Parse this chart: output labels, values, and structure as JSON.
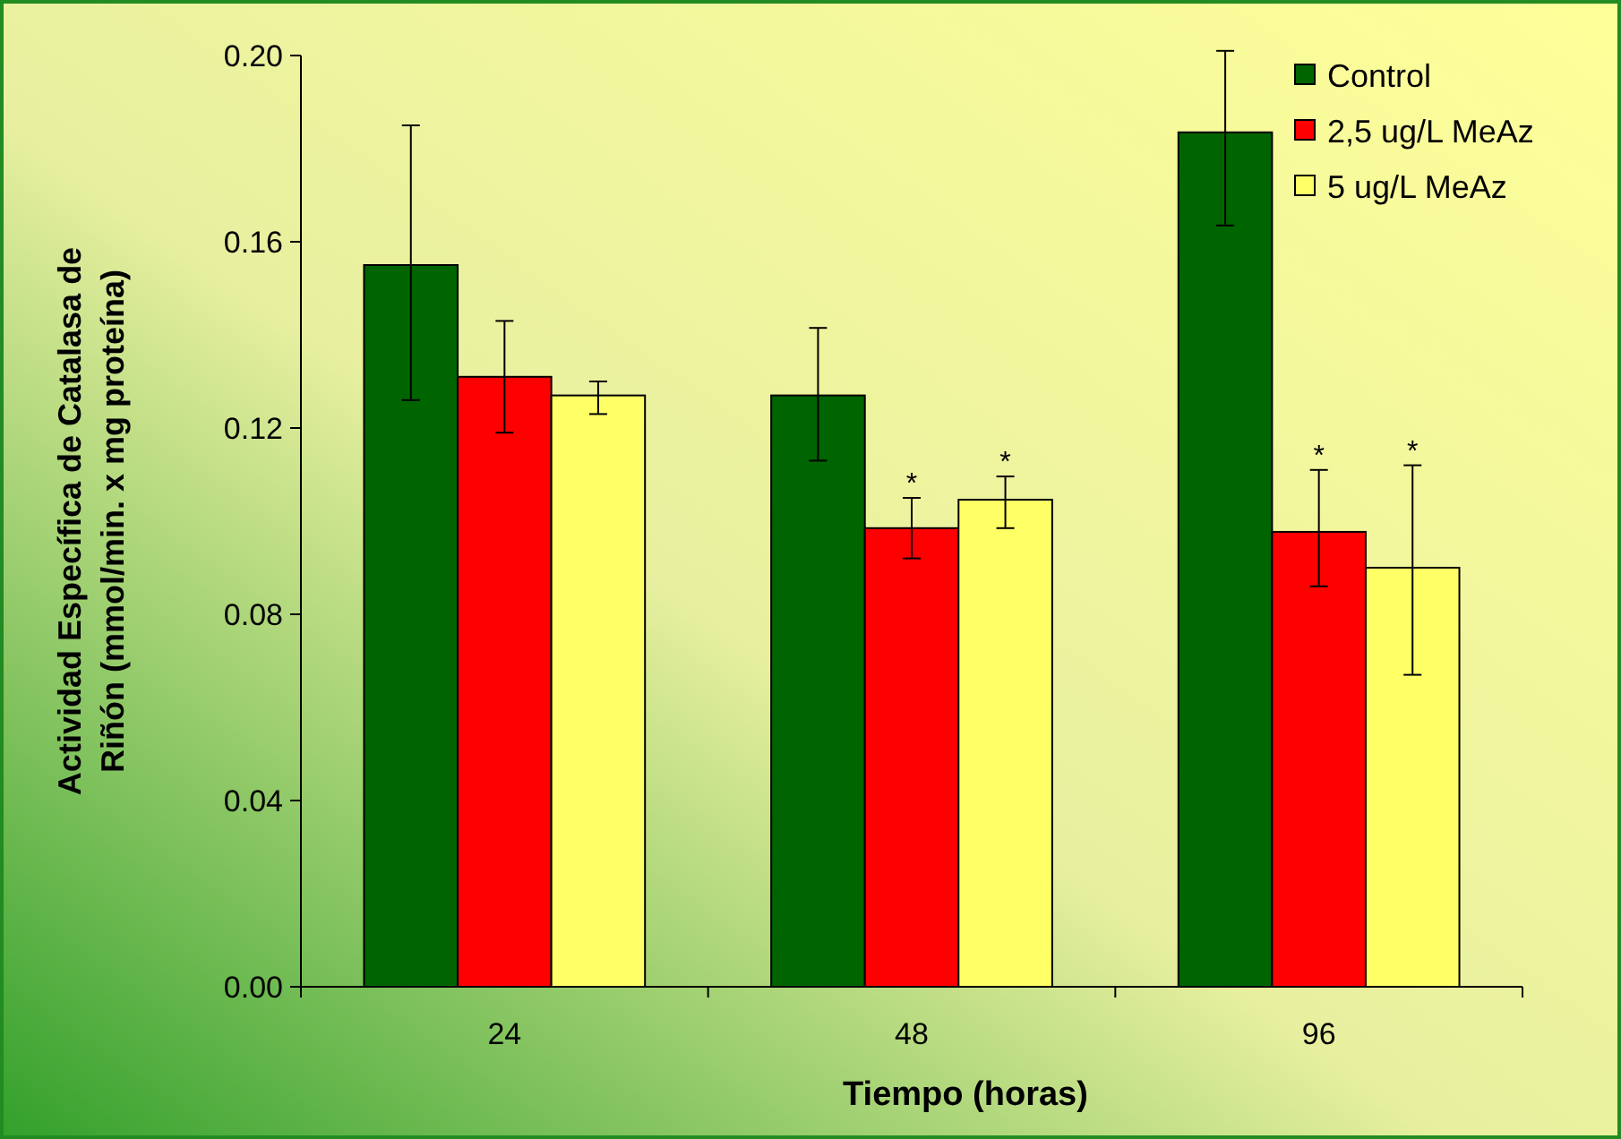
{
  "chart_data": {
    "type": "bar",
    "xlabel": "Tiempo (horas)",
    "ylabel": "Actividad Específica de Catalasa de\nRiñón (mmol/min. x mg proteína)",
    "categories": [
      "24",
      "48",
      "96"
    ],
    "series": [
      {
        "name": "Control",
        "color": "#006400",
        "values": [
          0.155,
          0.127,
          0.1835
        ],
        "errors": [
          [
            0.126,
            0.185
          ],
          [
            0.113,
            0.1415
          ],
          [
            0.1635,
            0.201
          ]
        ]
      },
      {
        "name": "2,5 ug/L MeAz",
        "color": "#ff0000",
        "values": [
          0.131,
          0.0985,
          0.0977
        ],
        "errors": [
          [
            0.119,
            0.143
          ],
          [
            0.092,
            0.105
          ],
          [
            0.086,
            0.111
          ]
        ]
      },
      {
        "name": "5 ug/L MeAz",
        "color": "#ffff66",
        "values": [
          0.127,
          0.1046,
          0.09
        ],
        "errors": [
          [
            0.123,
            0.13
          ],
          [
            0.0985,
            0.1096
          ],
          [
            0.067,
            0.112
          ]
        ]
      }
    ],
    "ylim": [
      0,
      0.2
    ],
    "yticks": [
      {
        "value": 0,
        "label": "0.00"
      },
      {
        "value": 0.04,
        "label": "0.04"
      },
      {
        "value": 0.08,
        "label": "0.08"
      },
      {
        "value": 0.12,
        "label": "0.12"
      },
      {
        "value": 0.16,
        "label": "0.16"
      },
      {
        "value": 0.2,
        "label": "0.20"
      }
    ],
    "annotations": [
      {
        "text": "*",
        "x": "48",
        "y": 0.0985
      },
      "*",
      {
        "text": "*",
        "x": "96",
        "y": 0.0977
      },
      "*"
    ],
    "legend": "top right",
    "grid": false
  }
}
